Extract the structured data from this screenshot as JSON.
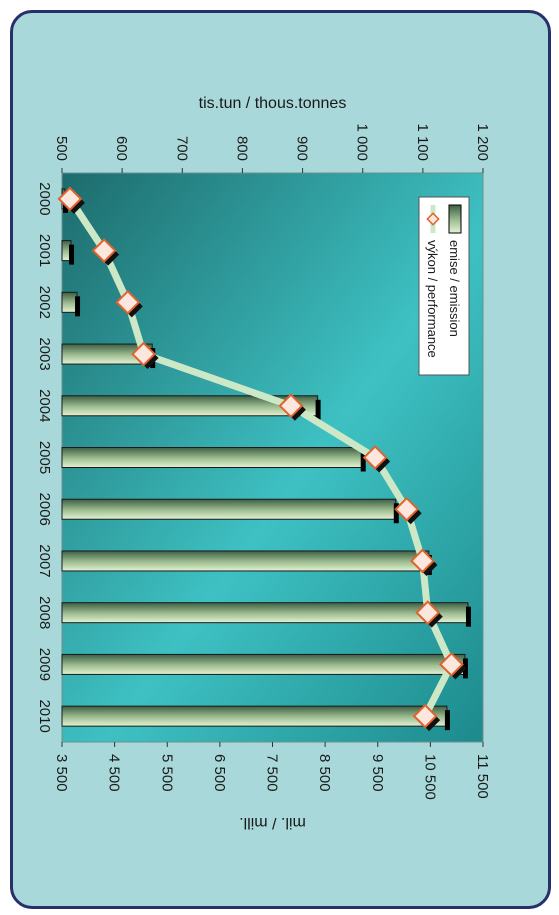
{
  "chart_data": {
    "type": "bar+line",
    "orientation": "rotated-90-clockwise",
    "categories": [
      "2000",
      "2001",
      "2002",
      "2003",
      "2004",
      "2005",
      "2006",
      "2007",
      "2008",
      "2009",
      "2010"
    ],
    "series": [
      {
        "name": "emise / emission",
        "type": "bar",
        "axis": "tis.tun / thous.tonnes",
        "values": [
          505,
          515,
          525,
          650,
          925,
          1000,
          1055,
          1110,
          1175,
          1170,
          1140
        ]
      },
      {
        "name": "výkon / performance",
        "type": "line",
        "axis": "mil. / mill.",
        "values": [
          3650,
          4300,
          4750,
          5050,
          7850,
          9450,
          10050,
          10350,
          10450,
          10900,
          10400
        ]
      }
    ],
    "left_axis": {
      "label": "tis.tun / thous.tonnes",
      "range": [
        500,
        1200
      ],
      "ticks": [
        "500",
        "600",
        "700",
        "800",
        "900",
        "1 000",
        "1 100",
        "1 200"
      ]
    },
    "right_axis": {
      "label": "mil. / mill.",
      "range": [
        3500,
        11500
      ],
      "ticks": [
        "3 500",
        "4 500",
        "5 500",
        "6 500",
        "7 500",
        "8 500",
        "9 500",
        "10 500",
        "11 500"
      ]
    },
    "legend": {
      "position": "upper-left",
      "entries": [
        "emise / emission",
        "výkon / performance"
      ]
    },
    "colors": {
      "panel": "#a8d8d9",
      "border": "#27306b",
      "plot_dark": "#1d6b6c",
      "plot_light": "#3ec1c3",
      "line": "#cde8c7",
      "marker_fill": "#fbe7dd",
      "marker_stroke": "#e0622e",
      "bar_dark": "#3d5e44",
      "bar_light": "#e4f2d3"
    }
  }
}
